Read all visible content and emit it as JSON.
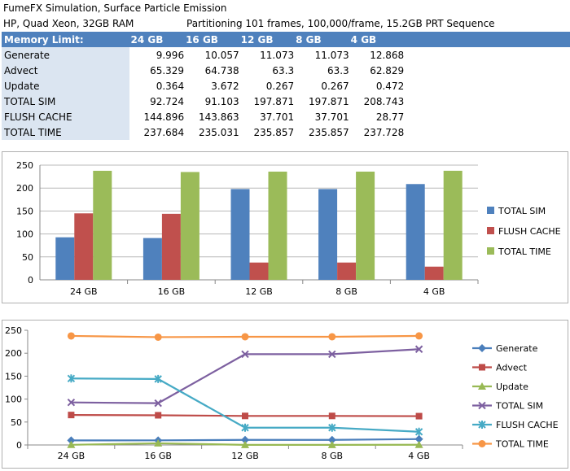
{
  "header": {
    "title": "FumeFX Simulation, Surface Particle Emission",
    "hardware": "HP, Quad Xeon, 32GB RAM",
    "partition": "Partitioning 101 frames, 100,000/frame, 15.2GB PRT Sequence"
  },
  "table": {
    "label_header": "Memory Limit:",
    "columns": [
      "24 GB",
      "16 GB",
      "12 GB",
      "8 GB",
      "4 GB"
    ],
    "rows": [
      {
        "label": "Generate",
        "values": [
          "9.996",
          "10.057",
          "11.073",
          "11.073",
          "12.868"
        ]
      },
      {
        "label": "Advect",
        "values": [
          "65.329",
          "64.738",
          "63.3",
          "63.3",
          "62.829"
        ]
      },
      {
        "label": "Update",
        "values": [
          "0.364",
          "3.672",
          "0.267",
          "0.267",
          "0.472"
        ]
      },
      {
        "label": "TOTAL SIM",
        "values": [
          "92.724",
          "91.103",
          "197.871",
          "197.871",
          "208.743"
        ]
      },
      {
        "label": "FLUSH CACHE",
        "values": [
          "144.896",
          "143.863",
          "37.701",
          "37.701",
          "28.77"
        ]
      },
      {
        "label": "TOTAL TIME",
        "values": [
          "237.684",
          "235.031",
          "235.857",
          "235.857",
          "237.728"
        ]
      }
    ]
  },
  "chart_data": [
    {
      "type": "bar",
      "categories": [
        "24 GB",
        "16 GB",
        "12 GB",
        "8 GB",
        "4 GB"
      ],
      "series": [
        {
          "name": "TOTAL SIM",
          "values": [
            92.724,
            91.103,
            197.871,
            197.871,
            208.743
          ],
          "color": "#4f81bd"
        },
        {
          "name": "FLUSH CACHE",
          "values": [
            144.896,
            143.863,
            37.701,
            37.701,
            28.77
          ],
          "color": "#c0504d"
        },
        {
          "name": "TOTAL TIME",
          "values": [
            237.684,
            235.031,
            235.857,
            235.857,
            237.728
          ],
          "color": "#9bbb59"
        }
      ],
      "yticks": [
        0,
        50,
        100,
        150,
        200,
        250
      ],
      "ylim": [
        0,
        250
      ],
      "grid": true,
      "legend": "right"
    },
    {
      "type": "line",
      "categories": [
        "24 GB",
        "16 GB",
        "12 GB",
        "8 GB",
        "4 GB"
      ],
      "series": [
        {
          "name": "Generate",
          "values": [
            9.996,
            10.057,
            11.073,
            11.073,
            12.868
          ],
          "color": "#4a7ebb",
          "marker": "diamond"
        },
        {
          "name": "Advect",
          "values": [
            65.329,
            64.738,
            63.3,
            63.3,
            62.829
          ],
          "color": "#be4b48",
          "marker": "square"
        },
        {
          "name": "Update",
          "values": [
            0.364,
            3.672,
            0.267,
            0.267,
            0.472
          ],
          "color": "#98b954",
          "marker": "triangle"
        },
        {
          "name": "TOTAL SIM",
          "values": [
            92.724,
            91.103,
            197.871,
            197.871,
            208.743
          ],
          "color": "#7d60a0",
          "marker": "x"
        },
        {
          "name": "FLUSH CACHE",
          "values": [
            144.896,
            143.863,
            37.701,
            37.701,
            28.77
          ],
          "color": "#46aac5",
          "marker": "star"
        },
        {
          "name": "TOTAL TIME",
          "values": [
            237.684,
            235.031,
            235.857,
            235.857,
            237.728
          ],
          "color": "#f79646",
          "marker": "circle"
        }
      ],
      "yticks": [
        0,
        50,
        100,
        150,
        200,
        250
      ],
      "ylim": [
        0,
        250
      ],
      "grid": false,
      "legend": "right"
    }
  ]
}
